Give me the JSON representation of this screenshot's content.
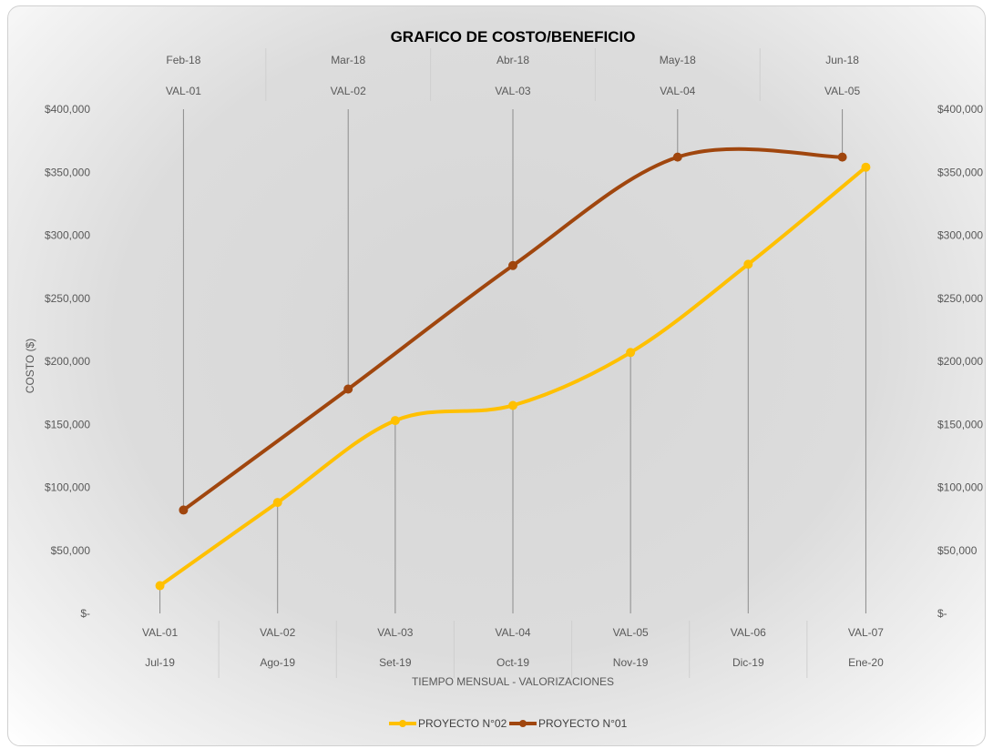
{
  "chart_data": {
    "type": "line",
    "title": "GRAFICO DE COSTO/BENEFICIO",
    "xlabel": "TIEMPO MENSUAL - VALORIZACIONES",
    "ylabel": "COSTO ($)",
    "ylim": [
      0,
      400000
    ],
    "y_ticks": [
      {
        "value": 0,
        "label": "$-"
      },
      {
        "value": 50000,
        "label": "$50,000"
      },
      {
        "value": 100000,
        "label": "$100,000"
      },
      {
        "value": 150000,
        "label": "$150,000"
      },
      {
        "value": 200000,
        "label": "$200,000"
      },
      {
        "value": 250000,
        "label": "$250,000"
      },
      {
        "value": 300000,
        "label": "$300,000"
      },
      {
        "value": 350000,
        "label": "$350,000"
      },
      {
        "value": 400000,
        "label": "$400,000"
      }
    ],
    "grid": "vertical drop lines",
    "legend": "bottom",
    "primary_x": {
      "position": "bottom",
      "categories": [
        "VAL-01",
        "VAL-02",
        "VAL-03",
        "VAL-04",
        "VAL-05",
        "VAL-06",
        "VAL-07"
      ],
      "months": [
        "Jul-19",
        "Ago-19",
        "Set-19",
        "Oct-19",
        "Nov-19",
        "Dic-19",
        "Ene-20"
      ]
    },
    "secondary_x": {
      "position": "top",
      "categories": [
        "VAL-01",
        "VAL-02",
        "VAL-03",
        "VAL-04",
        "VAL-05"
      ],
      "months": [
        "Feb-18",
        "Mar-18",
        "Abr-18",
        "May-18",
        "Jun-18"
      ]
    },
    "series": [
      {
        "name": "PROYECTO N°02",
        "axis": "primary",
        "color": "#FFC000",
        "values": [
          22000,
          88000,
          153000,
          165000,
          207000,
          277000,
          354000
        ]
      },
      {
        "name": "PROYECTO N°01",
        "axis": "secondary",
        "color": "#A0460E",
        "values": [
          82000,
          178000,
          276000,
          362000,
          362000
        ]
      }
    ]
  }
}
